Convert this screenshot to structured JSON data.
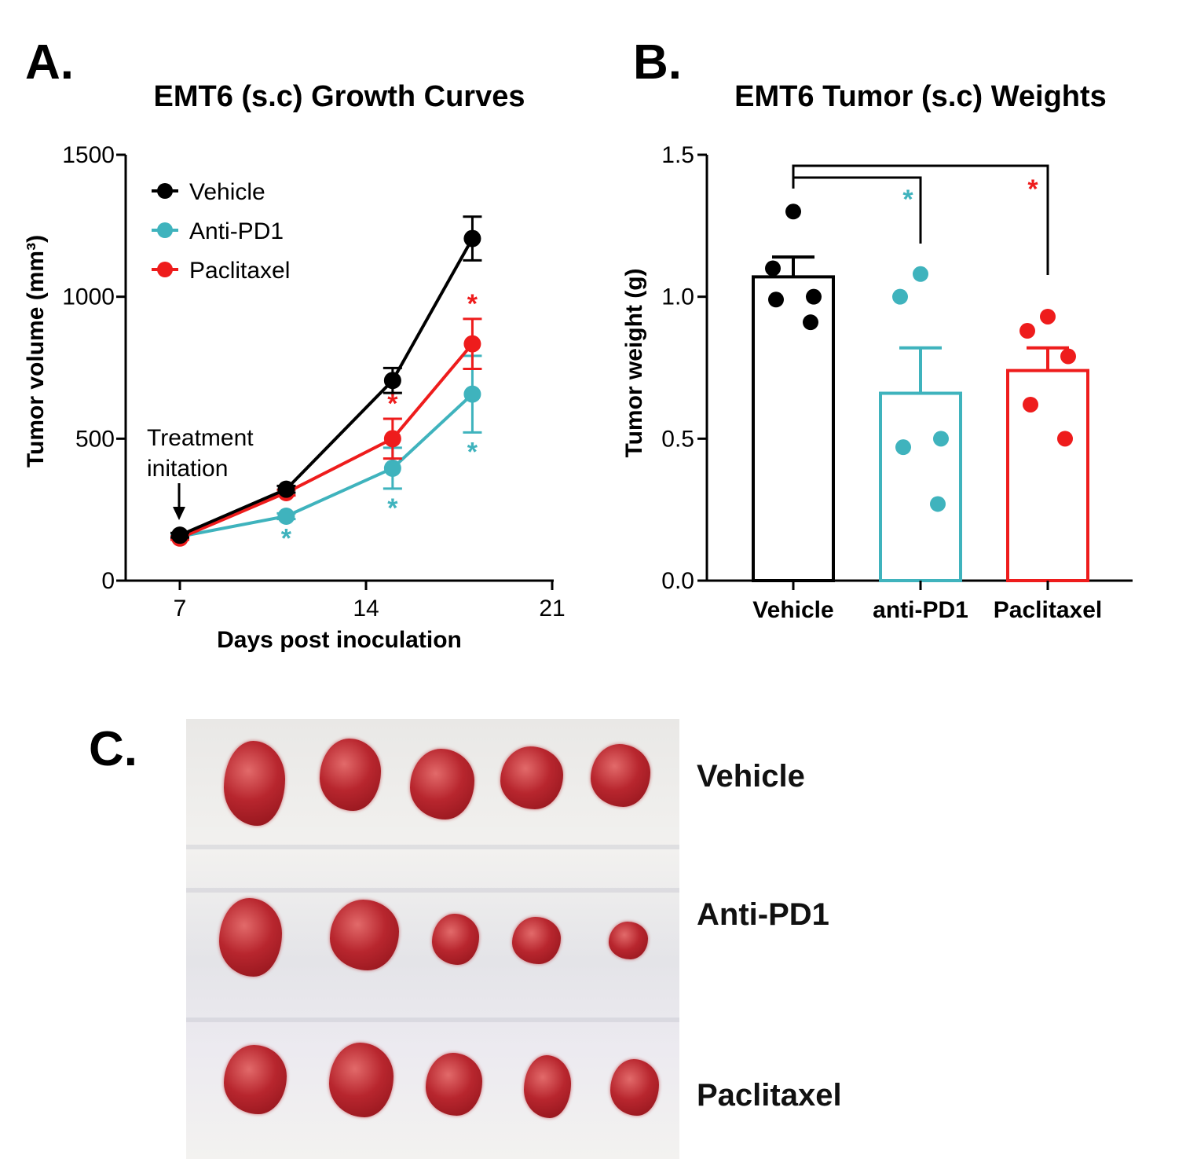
{
  "panels": {
    "a": "A.",
    "b": "B.",
    "c": "C."
  },
  "chart_data": [
    {
      "type": "line",
      "title": "EMT6 (s.c) Growth Curves",
      "xlabel": "Days post inoculation",
      "ylabel": "Tumor volume (mm³)",
      "xlim": [
        7,
        21
      ],
      "ylim": [
        0,
        1500
      ],
      "xticks": [
        "7",
        "14",
        "21"
      ],
      "yticks": [
        "0",
        "500",
        "1000",
        "1500"
      ],
      "legend_position": "top-left",
      "annotation": {
        "line1": "Treatment",
        "line2": "initation"
      },
      "x": [
        7,
        11,
        15,
        18
      ],
      "series": [
        {
          "name": "Vehicle",
          "color": "#000000",
          "values": [
            160,
            322,
            705,
            1205
          ],
          "errors": [
            8,
            12,
            44,
            77
          ],
          "stars": [
            false,
            false,
            false,
            false
          ]
        },
        {
          "name": "Anti-PD1",
          "color": "#3fb3bd",
          "values": [
            155,
            227,
            396,
            657
          ],
          "errors": [
            6,
            10,
            72,
            135
          ],
          "stars": [
            false,
            true,
            true,
            true
          ]
        },
        {
          "name": "Paclitaxel",
          "color": "#ee1c1c",
          "values": [
            150,
            310,
            500,
            834
          ],
          "errors": [
            6,
            10,
            70,
            88
          ],
          "stars": [
            false,
            false,
            true,
            true
          ]
        }
      ],
      "star_symbol": "*"
    },
    {
      "type": "bar",
      "title": "EMT6  Tumor (s.c) Weights",
      "xlabel": "",
      "ylabel": "Tumor weight (g)",
      "ylim": [
        0,
        1.5
      ],
      "yticks": [
        "0.0",
        "0.5",
        "1.0",
        "1.5"
      ],
      "categories": [
        "Vehicle",
        "anti-PD1",
        "Paclitaxel"
      ],
      "values": [
        1.07,
        0.66,
        0.74
      ],
      "sem": [
        0.07,
        0.16,
        0.08
      ],
      "colors": [
        "#000000",
        "#3fb3bd",
        "#ee1c1c"
      ],
      "points": [
        [
          1.3,
          1.1,
          1.0,
          0.99,
          0.91
        ],
        [
          1.08,
          1.0,
          0.5,
          0.47,
          0.27
        ],
        [
          0.93,
          0.88,
          0.79,
          0.62,
          0.5
        ]
      ],
      "significance": [
        {
          "from": "Vehicle",
          "to": "anti-PD1",
          "label": "*"
        },
        {
          "from": "Vehicle",
          "to": "Paclitaxel",
          "label": "*"
        }
      ]
    }
  ],
  "photo": {
    "rows": [
      "Vehicle",
      "Anti-PD1",
      "Paclitaxel"
    ]
  }
}
